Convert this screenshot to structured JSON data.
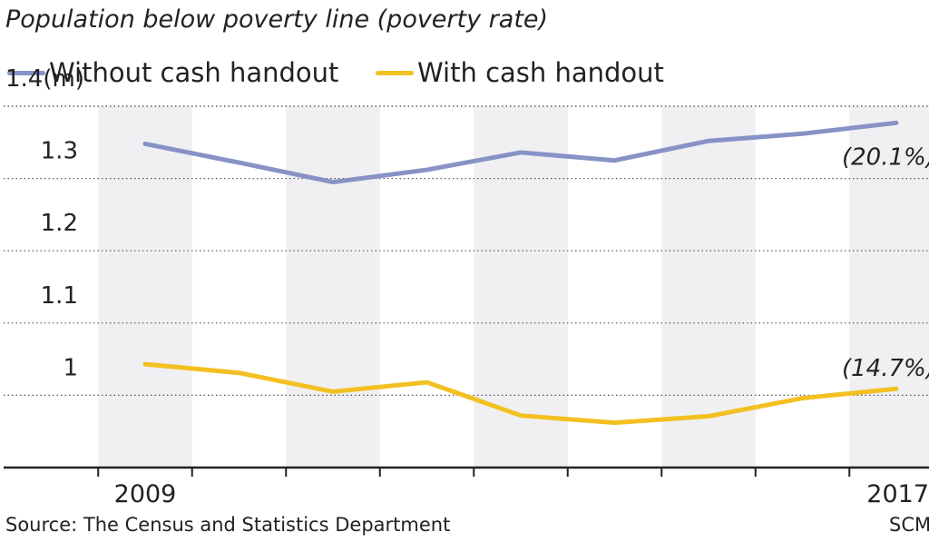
{
  "chart_data": {
    "type": "line",
    "title": "Population below poverty line (poverty rate)",
    "ylabel": "(m)",
    "x": [
      2009,
      2010,
      2011,
      2012,
      2013,
      2014,
      2015,
      2016,
      2017
    ],
    "x_tick_labels": [
      "2009",
      "",
      "",
      "",
      "",
      "",
      "",
      "",
      "2017"
    ],
    "y_ticks": [
      1,
      1.1,
      1.2,
      1.3,
      1.4
    ],
    "y_tick_labels": [
      "1",
      "1.1",
      "1.2",
      "1.3",
      "1.4(m)"
    ],
    "ylim": [
      0.9,
      1.4
    ],
    "series": [
      {
        "name": "Without cash handout",
        "color": "#8792c6",
        "values": [
          1.348,
          1.322,
          1.295,
          1.312,
          1.336,
          1.325,
          1.352,
          1.362,
          1.377
        ],
        "end_label": "(20.1%)"
      },
      {
        "name": "With cash handout",
        "color": "#f3c022",
        "values": [
          1.043,
          1.031,
          1.005,
          1.018,
          0.972,
          0.962,
          0.971,
          0.996,
          1.009
        ],
        "end_label": "(14.7%)"
      }
    ],
    "band_color": "#f0f0f2",
    "grid": true
  },
  "source_text": "Source: The Census and Statistics Department",
  "credit_text": "SCM"
}
